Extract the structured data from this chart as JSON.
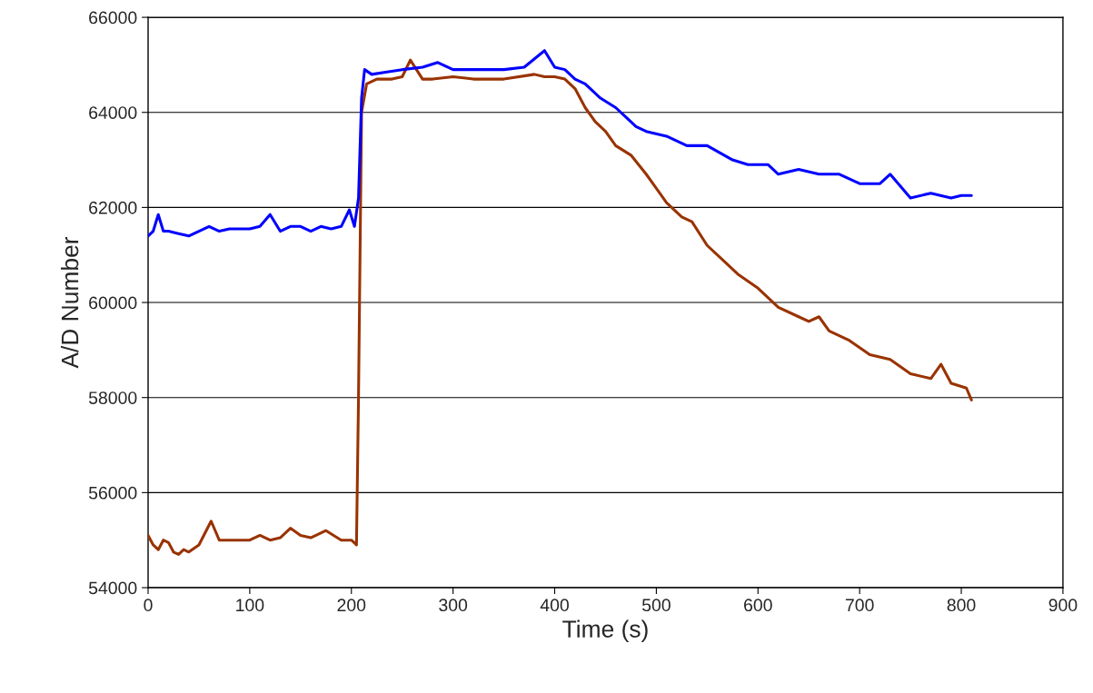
{
  "chart_data": {
    "type": "line",
    "xlabel": "Time (s)",
    "ylabel": "A/D Number",
    "xlim": [
      0,
      900
    ],
    "ylim": [
      54000,
      66000
    ],
    "xticks": [
      0,
      100,
      200,
      300,
      400,
      500,
      600,
      700,
      800,
      900
    ],
    "yticks": [
      54000,
      56000,
      58000,
      60000,
      62000,
      64000,
      66000
    ],
    "grid": "y",
    "series": [
      {
        "color": "#993300",
        "x": [
          0,
          5,
          10,
          15,
          20,
          25,
          30,
          35,
          40,
          50,
          62,
          70,
          85,
          100,
          110,
          120,
          130,
          140,
          150,
          160,
          175,
          190,
          200,
          205,
          207,
          210,
          215,
          225,
          240,
          250,
          258,
          270,
          280,
          300,
          320,
          350,
          380,
          390,
          400,
          410,
          420,
          430,
          440,
          450,
          460,
          475,
          490,
          500,
          510,
          525,
          535,
          550,
          565,
          580,
          600,
          620,
          640,
          650,
          660,
          670,
          690,
          710,
          730,
          750,
          770,
          780,
          790,
          805,
          810
        ],
        "values": [
          55100,
          54900,
          54800,
          55000,
          54950,
          54750,
          54700,
          54800,
          54750,
          54900,
          55400,
          55000,
          55000,
          55000,
          55100,
          55000,
          55050,
          55250,
          55100,
          55050,
          55200,
          55000,
          55000,
          54900,
          58000,
          64000,
          64600,
          64700,
          64700,
          64750,
          65100,
          64700,
          64700,
          64750,
          64700,
          64700,
          64800,
          64750,
          64750,
          64700,
          64500,
          64100,
          63800,
          63600,
          63300,
          63100,
          62700,
          62400,
          62100,
          61800,
          61700,
          61200,
          60900,
          60600,
          60300,
          59900,
          59700,
          59600,
          59700,
          59400,
          59200,
          58900,
          58800,
          58500,
          58400,
          58700,
          58300,
          58200,
          57950
        ]
      },
      {
        "color": "#0000ff",
        "x": [
          0,
          5,
          10,
          15,
          20,
          30,
          40,
          50,
          60,
          70,
          80,
          100,
          110,
          120,
          130,
          140,
          150,
          160,
          170,
          180,
          190,
          198,
          203,
          207,
          210,
          213,
          220,
          235,
          250,
          270,
          285,
          300,
          320,
          350,
          370,
          390,
          400,
          410,
          420,
          430,
          445,
          460,
          470,
          480,
          490,
          510,
          530,
          550,
          575,
          590,
          610,
          620,
          640,
          660,
          680,
          700,
          720,
          730,
          750,
          770,
          790,
          800,
          810
        ],
        "values": [
          61400,
          61500,
          61850,
          61500,
          61500,
          61450,
          61400,
          61500,
          61600,
          61500,
          61550,
          61550,
          61600,
          61850,
          61500,
          61600,
          61600,
          61500,
          61600,
          61550,
          61600,
          61950,
          61600,
          62200,
          64300,
          64900,
          64800,
          64850,
          64900,
          64950,
          65050,
          64900,
          64900,
          64900,
          64950,
          65300,
          64950,
          64900,
          64700,
          64600,
          64300,
          64100,
          63900,
          63700,
          63600,
          63500,
          63300,
          63300,
          63000,
          62900,
          62900,
          62700,
          62800,
          62700,
          62700,
          62500,
          62500,
          62700,
          62200,
          62300,
          62200,
          62250,
          62250
        ]
      }
    ]
  }
}
